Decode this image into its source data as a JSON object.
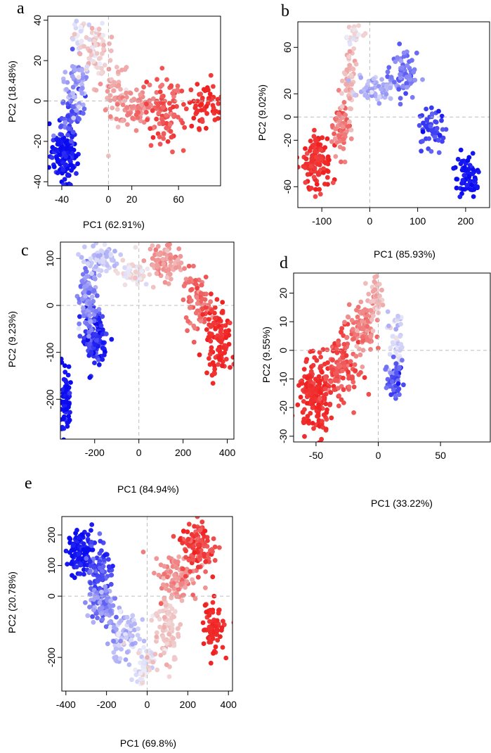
{
  "chart_data": [
    {
      "type": "scatter",
      "panel_label": "a",
      "xlabel": "PC1 (62.91%)",
      "ylabel": "PC2 (18.48%)",
      "xlim": [
        -52,
        96
      ],
      "ylim": [
        -42,
        42
      ],
      "x_ticks": [
        -40,
        0,
        20,
        60
      ],
      "x_tick_labels": [
        "-40",
        "0",
        "20",
        "60"
      ],
      "y_ticks": [
        -40,
        -20,
        0,
        20,
        40
      ],
      "y_tick_labels": [
        "-40",
        "-20",
        "0",
        "20",
        "40"
      ],
      "color_scale": [
        "#0a0af0",
        "#eeeefa",
        "#f0d8d8",
        "#f02020"
      ],
      "clusters": [
        {
          "cx": -38,
          "cy": -27,
          "sx": 6,
          "sy": 7,
          "n": 130,
          "t": 0.02,
          "dt": 0.05
        },
        {
          "cx": -30,
          "cy": -8,
          "sx": 5,
          "sy": 6,
          "n": 60,
          "t": 0.18,
          "dt": 0.06
        },
        {
          "cx": -28,
          "cy": 10,
          "sx": 5,
          "sy": 7,
          "n": 55,
          "t": 0.32,
          "dt": 0.06
        },
        {
          "cx": -26,
          "cy": 32,
          "sx": 3,
          "sy": 4,
          "n": 25,
          "t": 0.46,
          "dt": 0.05
        },
        {
          "cx": -12,
          "cy": 27,
          "sx": 6,
          "sy": 6,
          "n": 70,
          "t": 0.55,
          "dt": 0.05
        },
        {
          "cx": 4,
          "cy": 5,
          "sx": 7,
          "sy": 8,
          "n": 60,
          "t": 0.62,
          "dt": 0.05
        },
        {
          "cx": 24,
          "cy": -3,
          "sx": 9,
          "sy": 4,
          "n": 80,
          "t": 0.72,
          "dt": 0.05
        },
        {
          "cx": 48,
          "cy": -5,
          "sx": 8,
          "sy": 9,
          "n": 100,
          "t": 0.84,
          "dt": 0.06
        },
        {
          "cx": 82,
          "cy": -1,
          "sx": 7,
          "sy": 6,
          "n": 55,
          "t": 0.96,
          "dt": 0.03
        }
      ]
    },
    {
      "type": "scatter",
      "panel_label": "b",
      "xlabel": "PC1 (85.93%)",
      "ylabel": "PC2 (9.02%)",
      "xlim": [
        -150,
        250
      ],
      "ylim": [
        -78,
        82
      ],
      "x_ticks": [
        -100,
        0,
        100,
        200
      ],
      "x_tick_labels": [
        "-100",
        "0",
        "100",
        "200"
      ],
      "y_ticks": [
        -60,
        -20,
        0,
        20,
        60
      ],
      "y_tick_labels": [
        "-60",
        "-20",
        "0",
        "20",
        "60"
      ],
      "color_scale": [
        "#0a0af0",
        "#eeeefa",
        "#f0d8d8",
        "#f02020"
      ],
      "clusters": [
        {
          "cx": -110,
          "cy": -40,
          "sx": 14,
          "sy": 13,
          "n": 120,
          "t": 0.96,
          "dt": 0.03
        },
        {
          "cx": -60,
          "cy": -10,
          "sx": 8,
          "sy": 12,
          "n": 70,
          "t": 0.76,
          "dt": 0.06
        },
        {
          "cx": -40,
          "cy": 30,
          "sx": 7,
          "sy": 16,
          "n": 60,
          "t": 0.58,
          "dt": 0.05
        },
        {
          "cx": -30,
          "cy": 70,
          "sx": 8,
          "sy": 6,
          "n": 25,
          "t": 0.5,
          "dt": 0.04
        },
        {
          "cx": 10,
          "cy": 25,
          "sx": 18,
          "sy": 5,
          "n": 60,
          "t": 0.36,
          "dt": 0.05
        },
        {
          "cx": 70,
          "cy": 35,
          "sx": 14,
          "sy": 10,
          "n": 75,
          "t": 0.22,
          "dt": 0.05
        },
        {
          "cx": 130,
          "cy": -10,
          "sx": 14,
          "sy": 8,
          "n": 55,
          "t": 0.12,
          "dt": 0.04
        },
        {
          "cx": 205,
          "cy": -50,
          "sx": 15,
          "sy": 11,
          "n": 70,
          "t": 0.02,
          "dt": 0.03
        }
      ]
    },
    {
      "type": "scatter",
      "panel_label": "c",
      "xlabel": "PC1 (84.94%)",
      "ylabel": "PC2 (9.23%)",
      "xlim": [
        -355,
        430
      ],
      "ylim": [
        -285,
        135
      ],
      "x_ticks": [
        -200,
        0,
        200,
        400
      ],
      "x_tick_labels": [
        "-200",
        "0",
        "200",
        "400"
      ],
      "y_ticks": [
        -200,
        -100,
        0,
        100
      ],
      "y_tick_labels": [
        "-200",
        "-100",
        "0",
        "100"
      ],
      "color_scale": [
        "#0a0af0",
        "#eeeefa",
        "#f0d8d8",
        "#f02020"
      ],
      "clusters": [
        {
          "cx": -330,
          "cy": -200,
          "sx": 10,
          "sy": 40,
          "n": 70,
          "t": 0.02,
          "dt": 0.03
        },
        {
          "cx": -200,
          "cy": -70,
          "sx": 28,
          "sy": 30,
          "n": 120,
          "t": 0.08,
          "dt": 0.05
        },
        {
          "cx": -230,
          "cy": 10,
          "sx": 20,
          "sy": 30,
          "n": 90,
          "t": 0.26,
          "dt": 0.06
        },
        {
          "cx": -170,
          "cy": 95,
          "sx": 35,
          "sy": 18,
          "n": 70,
          "t": 0.4,
          "dt": 0.05
        },
        {
          "cx": -30,
          "cy": 70,
          "sx": 40,
          "sy": 15,
          "n": 45,
          "t": 0.5,
          "dt": 0.03
        },
        {
          "cx": 130,
          "cy": 90,
          "sx": 35,
          "sy": 20,
          "n": 90,
          "t": 0.68,
          "dt": 0.06
        },
        {
          "cx": 260,
          "cy": 10,
          "sx": 30,
          "sy": 30,
          "n": 80,
          "t": 0.8,
          "dt": 0.05
        },
        {
          "cx": 360,
          "cy": -70,
          "sx": 30,
          "sy": 40,
          "n": 110,
          "t": 0.96,
          "dt": 0.03
        }
      ]
    },
    {
      "type": "scatter",
      "panel_label": "d",
      "xlabel": "PC1 (33.22%)",
      "ylabel": "PC2 (9.55%)",
      "xlim": [
        -68,
        90
      ],
      "ylim": [
        -32,
        27
      ],
      "x_ticks": [
        -50,
        0,
        50
      ],
      "x_tick_labels": [
        "-50",
        "0",
        "50"
      ],
      "y_ticks": [
        -30,
        -20,
        -10,
        0,
        10,
        20
      ],
      "y_tick_labels": [
        "-30",
        "-20",
        "-10",
        "0",
        "10",
        "20"
      ],
      "color_scale": [
        "#0a0af0",
        "#eeeefa",
        "#f0d8d8",
        "#f02020"
      ],
      "clusters": [
        {
          "cx": -50,
          "cy": -16,
          "sx": 7,
          "sy": 6,
          "n": 180,
          "t": 0.96,
          "dt": 0.03
        },
        {
          "cx": -30,
          "cy": -5,
          "sx": 7,
          "sy": 6,
          "n": 120,
          "t": 0.86,
          "dt": 0.05
        },
        {
          "cx": -12,
          "cy": 8,
          "sx": 5,
          "sy": 5,
          "n": 100,
          "t": 0.74,
          "dt": 0.06
        },
        {
          "cx": -3,
          "cy": 18,
          "sx": 3,
          "sy": 4,
          "n": 50,
          "t": 0.6,
          "dt": 0.05
        },
        {
          "cx": 14,
          "cy": 2,
          "sx": 3,
          "sy": 5,
          "n": 45,
          "t": 0.44,
          "dt": 0.05
        },
        {
          "cx": 13,
          "cy": -10,
          "sx": 3,
          "sy": 3,
          "n": 55,
          "t": 0.16,
          "dt": 0.06
        }
      ]
    },
    {
      "type": "scatter",
      "panel_label": "e",
      "xlabel": "PC1 (69.8%)",
      "ylabel": "PC2 (20.78%)",
      "xlim": [
        -420,
        420
      ],
      "ylim": [
        -310,
        260
      ],
      "x_ticks": [
        -400,
        -200,
        0,
        200,
        400
      ],
      "x_tick_labels": [
        "-400",
        "-200",
        "0",
        "200",
        "400"
      ],
      "y_ticks": [
        -200,
        0,
        100,
        200
      ],
      "y_tick_labels": [
        "-200",
        "0",
        "100",
        "200"
      ],
      "color_scale": [
        "#0a0af0",
        "#eeeefa",
        "#f0d8d8",
        "#f02020"
      ],
      "clusters": [
        {
          "cx": -330,
          "cy": 150,
          "sx": 30,
          "sy": 35,
          "n": 110,
          "t": 0.03,
          "dt": 0.03
        },
        {
          "cx": -230,
          "cy": 80,
          "sx": 30,
          "sy": 50,
          "n": 100,
          "t": 0.14,
          "dt": 0.05
        },
        {
          "cx": -220,
          "cy": -30,
          "sx": 35,
          "sy": 30,
          "n": 90,
          "t": 0.26,
          "dt": 0.06
        },
        {
          "cx": -120,
          "cy": -130,
          "sx": 40,
          "sy": 40,
          "n": 90,
          "t": 0.38,
          "dt": 0.05
        },
        {
          "cx": -20,
          "cy": -230,
          "sx": 30,
          "sy": 30,
          "n": 50,
          "t": 0.48,
          "dt": 0.03
        },
        {
          "cx": 100,
          "cy": -110,
          "sx": 30,
          "sy": 60,
          "n": 90,
          "t": 0.56,
          "dt": 0.04
        },
        {
          "cx": 150,
          "cy": 60,
          "sx": 50,
          "sy": 40,
          "n": 110,
          "t": 0.7,
          "dt": 0.06
        },
        {
          "cx": 250,
          "cy": 160,
          "sx": 40,
          "sy": 40,
          "n": 110,
          "t": 0.9,
          "dt": 0.05
        },
        {
          "cx": 320,
          "cy": -100,
          "sx": 30,
          "sy": 40,
          "n": 70,
          "t": 0.97,
          "dt": 0.02
        }
      ]
    }
  ]
}
